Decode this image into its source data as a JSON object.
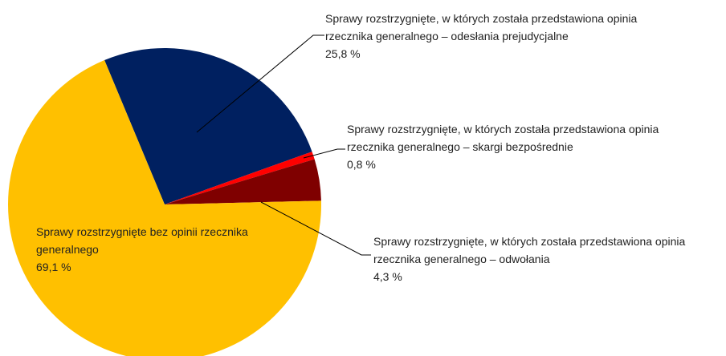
{
  "chart_data": {
    "type": "pie",
    "categories": [
      "Sprawy rozstrzygnięte, w których została przedstawiona opinia rzecznika generalnego – odesłania prejudycjalne",
      "Sprawy rozstrzygnięte, w których została przedstawiona opinia rzecznika generalnego – skargi bezpośrednie",
      "Sprawy rozstrzygnięte, w których została przedstawiona opinia rzecznika generalnego – odwołania",
      "Sprawy rozstrzygnięte bez opinii rzecznika generalnego"
    ],
    "values": [
      25.8,
      0.8,
      4.3,
      69.1
    ],
    "value_labels": [
      "25,8 %",
      "0,8 %",
      "4,3 %",
      "69,1 %"
    ],
    "colors": [
      "#002060",
      "#ff0000",
      "#7f0000",
      "#ffc000"
    ]
  }
}
